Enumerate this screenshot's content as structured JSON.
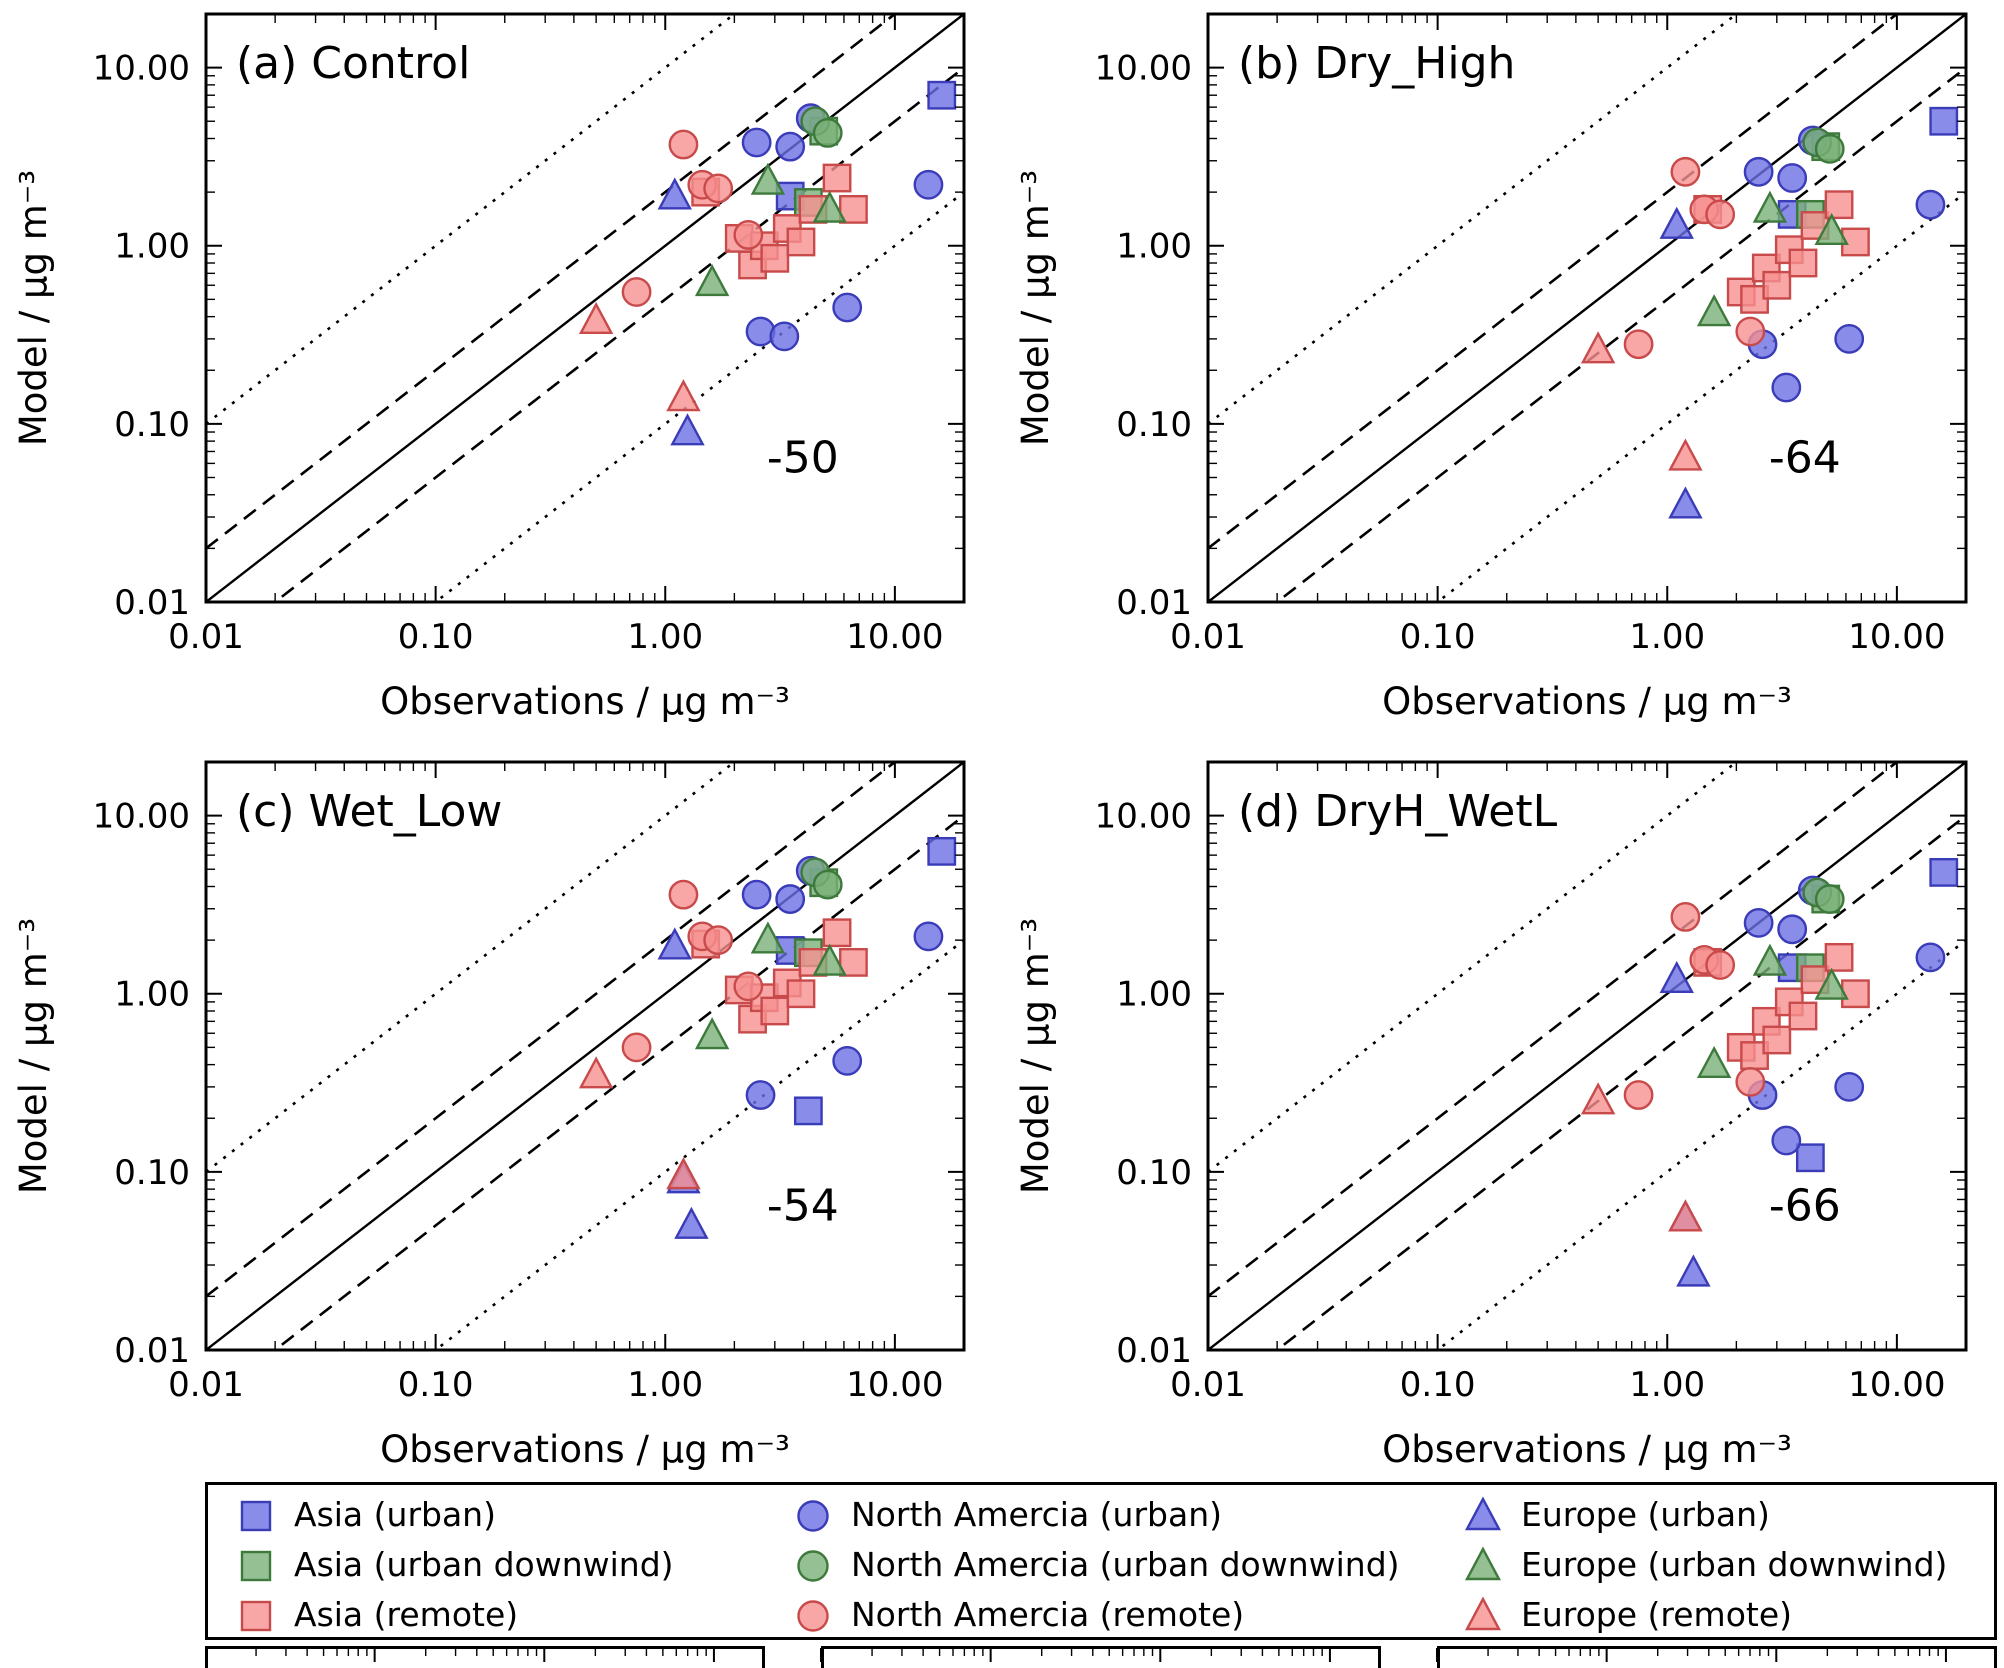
{
  "figure": {
    "xlabel": "Observations / µg m⁻³",
    "ylabel": "Model / µg m⁻³",
    "tick_labels": [
      "0.01",
      "0.10",
      "1.00",
      "10.00"
    ],
    "tick_values": [
      0.01,
      0.1,
      1,
      10
    ]
  },
  "colors": {
    "urban": {
      "fill": "#6b6fe2",
      "stroke": "#3a3cb8"
    },
    "urban_downwind": {
      "fill": "#7bb078",
      "stroke": "#3e7a3c"
    },
    "remote": {
      "fill": "#f69090",
      "stroke": "#c94a4a"
    }
  },
  "chart_data": {
    "type": "scatter",
    "scale": "log-log",
    "xlim": [
      0.01,
      20
    ],
    "ylim": [
      0.01,
      20
    ],
    "reference_lines": [
      {
        "ratio": 1,
        "style": "solid"
      },
      {
        "ratio": 2,
        "style": "dashed"
      },
      {
        "ratio": 0.5,
        "style": "dashed"
      },
      {
        "ratio": 10,
        "style": "dotted"
      },
      {
        "ratio": 0.1,
        "style": "dotted"
      }
    ],
    "panels": [
      {
        "id": "a",
        "title": "(a) Control",
        "bias": "-50",
        "series": [
          {
            "name": "Asia (urban)",
            "marker": "square",
            "class": "urban",
            "points": [
              [
                16,
                7.0
              ],
              [
                3.5,
                1.9
              ]
            ]
          },
          {
            "name": "Asia (urban downwind)",
            "marker": "square",
            "class": "urban_downwind",
            "points": [
              [
                4.9,
                4.4
              ],
              [
                4.2,
                1.75
              ]
            ]
          },
          {
            "name": "Asia (remote)",
            "marker": "square",
            "class": "remote",
            "points": [
              [
                1.5,
                2.0
              ],
              [
                2.1,
                1.1
              ],
              [
                2.4,
                0.78
              ],
              [
                2.7,
                1.0
              ],
              [
                3.0,
                0.85
              ],
              [
                3.4,
                1.25
              ],
              [
                3.9,
                1.05
              ],
              [
                4.4,
                1.6
              ],
              [
                5.6,
                2.4
              ],
              [
                6.6,
                1.6
              ]
            ]
          },
          {
            "name": "North Amercia (urban)",
            "marker": "circle",
            "class": "urban",
            "points": [
              [
                2.5,
                3.8
              ],
              [
                3.5,
                3.6
              ],
              [
                4.3,
                5.2
              ],
              [
                14,
                2.2
              ],
              [
                6.2,
                0.45
              ],
              [
                2.6,
                0.33
              ],
              [
                3.3,
                0.31
              ]
            ]
          },
          {
            "name": "North Amercia (urban downwind)",
            "marker": "circle",
            "class": "urban_downwind",
            "points": [
              [
                4.5,
                5.0
              ],
              [
                5.1,
                4.3
              ]
            ]
          },
          {
            "name": "North Amercia (remote)",
            "marker": "circle",
            "class": "remote",
            "points": [
              [
                1.2,
                3.7
              ],
              [
                1.45,
                2.2
              ],
              [
                1.7,
                2.1
              ],
              [
                2.3,
                1.15
              ],
              [
                0.75,
                0.55
              ]
            ]
          },
          {
            "name": "Europe (urban)",
            "marker": "triangle",
            "class": "urban",
            "points": [
              [
                1.1,
                1.9
              ],
              [
                1.25,
                0.09
              ]
            ]
          },
          {
            "name": "Europe (urban downwind)",
            "marker": "triangle",
            "class": "urban_downwind",
            "points": [
              [
                2.8,
                2.3
              ],
              [
                1.6,
                0.62
              ],
              [
                5.2,
                1.6
              ]
            ]
          },
          {
            "name": "Europe (remote)",
            "marker": "triangle",
            "class": "remote",
            "points": [
              [
                0.5,
                0.38
              ],
              [
                1.2,
                0.14
              ]
            ]
          }
        ]
      },
      {
        "id": "b",
        "title": "(b) Dry_High",
        "bias": "-64",
        "series": [
          {
            "name": "Asia (urban)",
            "marker": "square",
            "class": "urban",
            "points": [
              [
                16,
                5.0
              ],
              [
                3.5,
                1.5
              ]
            ]
          },
          {
            "name": "Asia (urban downwind)",
            "marker": "square",
            "class": "urban_downwind",
            "points": [
              [
                4.9,
                3.6
              ],
              [
                4.2,
                1.5
              ]
            ]
          },
          {
            "name": "Asia (remote)",
            "marker": "square",
            "class": "remote",
            "points": [
              [
                1.5,
                1.6
              ],
              [
                2.1,
                0.55
              ],
              [
                2.4,
                0.5
              ],
              [
                2.7,
                0.75
              ],
              [
                3.0,
                0.6
              ],
              [
                3.4,
                0.95
              ],
              [
                3.9,
                0.8
              ],
              [
                4.4,
                1.3
              ],
              [
                5.6,
                1.7
              ],
              [
                6.6,
                1.05
              ]
            ]
          },
          {
            "name": "North Amercia (urban)",
            "marker": "circle",
            "class": "urban",
            "points": [
              [
                2.5,
                2.6
              ],
              [
                3.5,
                2.4
              ],
              [
                4.3,
                3.9
              ],
              [
                14,
                1.7
              ],
              [
                6.2,
                0.3
              ],
              [
                2.6,
                0.28
              ],
              [
                3.3,
                0.16
              ]
            ]
          },
          {
            "name": "North Amercia (urban downwind)",
            "marker": "circle",
            "class": "urban_downwind",
            "points": [
              [
                4.5,
                3.8
              ],
              [
                5.1,
                3.5
              ]
            ]
          },
          {
            "name": "North Amercia (remote)",
            "marker": "circle",
            "class": "remote",
            "points": [
              [
                1.2,
                2.6
              ],
              [
                1.45,
                1.6
              ],
              [
                1.7,
                1.5
              ],
              [
                2.3,
                0.33
              ],
              [
                0.75,
                0.28
              ]
            ]
          },
          {
            "name": "Europe (urban)",
            "marker": "triangle",
            "class": "urban",
            "points": [
              [
                1.1,
                1.3
              ],
              [
                1.2,
                0.035
              ]
            ]
          },
          {
            "name": "Europe (urban downwind)",
            "marker": "triangle",
            "class": "urban_downwind",
            "points": [
              [
                2.8,
                1.6
              ],
              [
                1.6,
                0.42
              ],
              [
                5.2,
                1.2
              ]
            ]
          },
          {
            "name": "Europe (remote)",
            "marker": "triangle",
            "class": "remote",
            "points": [
              [
                0.5,
                0.26
              ],
              [
                1.2,
                0.065
              ]
            ]
          }
        ]
      },
      {
        "id": "c",
        "title": "(c) Wet_Low",
        "bias": "-54",
        "series": [
          {
            "name": "Asia (urban)",
            "marker": "square",
            "class": "urban",
            "points": [
              [
                16,
                6.3
              ],
              [
                3.5,
                1.75
              ],
              [
                4.2,
                0.22
              ]
            ]
          },
          {
            "name": "Asia (urban downwind)",
            "marker": "square",
            "class": "urban_downwind",
            "points": [
              [
                4.9,
                4.2
              ],
              [
                4.2,
                1.7
              ]
            ]
          },
          {
            "name": "Asia (remote)",
            "marker": "square",
            "class": "remote",
            "points": [
              [
                1.5,
                1.9
              ],
              [
                2.1,
                1.05
              ],
              [
                2.4,
                0.72
              ],
              [
                2.7,
                0.95
              ],
              [
                3.0,
                0.8
              ],
              [
                3.4,
                1.15
              ],
              [
                3.9,
                1.0
              ],
              [
                4.4,
                1.5
              ],
              [
                5.6,
                2.2
              ],
              [
                6.6,
                1.5
              ]
            ]
          },
          {
            "name": "North Amercia (urban)",
            "marker": "circle",
            "class": "urban",
            "points": [
              [
                2.5,
                3.6
              ],
              [
                3.5,
                3.4
              ],
              [
                4.3,
                4.9
              ],
              [
                14,
                2.1
              ],
              [
                6.2,
                0.42
              ],
              [
                2.6,
                0.27
              ]
            ]
          },
          {
            "name": "North Amercia (urban downwind)",
            "marker": "circle",
            "class": "urban_downwind",
            "points": [
              [
                4.5,
                4.8
              ],
              [
                5.1,
                4.1
              ]
            ]
          },
          {
            "name": "North Amercia (remote)",
            "marker": "circle",
            "class": "remote",
            "points": [
              [
                1.2,
                3.6
              ],
              [
                1.45,
                2.1
              ],
              [
                1.7,
                2.0
              ],
              [
                2.3,
                1.1
              ],
              [
                0.75,
                0.5
              ]
            ]
          },
          {
            "name": "Europe (urban)",
            "marker": "triangle",
            "class": "urban",
            "points": [
              [
                1.1,
                1.85
              ],
              [
                1.2,
                0.09
              ],
              [
                1.3,
                0.05
              ]
            ]
          },
          {
            "name": "Europe (urban downwind)",
            "marker": "triangle",
            "class": "urban_downwind",
            "points": [
              [
                2.8,
                2.0
              ],
              [
                1.6,
                0.58
              ],
              [
                5.2,
                1.5
              ]
            ]
          },
          {
            "name": "Europe (remote)",
            "marker": "triangle",
            "class": "remote",
            "points": [
              [
                0.5,
                0.35
              ],
              [
                1.2,
                0.095
              ]
            ]
          }
        ]
      },
      {
        "id": "d",
        "title": "(d) DryH_WetL",
        "bias": "-66",
        "series": [
          {
            "name": "Asia (urban)",
            "marker": "square",
            "class": "urban",
            "points": [
              [
                16,
                4.8
              ],
              [
                3.5,
                1.4
              ],
              [
                4.2,
                0.12
              ]
            ]
          },
          {
            "name": "Asia (urban downwind)",
            "marker": "square",
            "class": "urban_downwind",
            "points": [
              [
                4.9,
                3.4
              ],
              [
                4.2,
                1.4
              ]
            ]
          },
          {
            "name": "Asia (remote)",
            "marker": "square",
            "class": "remote",
            "points": [
              [
                1.5,
                1.5
              ],
              [
                2.1,
                0.5
              ],
              [
                2.4,
                0.45
              ],
              [
                2.7,
                0.7
              ],
              [
                3.0,
                0.55
              ],
              [
                3.4,
                0.9
              ],
              [
                3.9,
                0.75
              ],
              [
                4.4,
                1.2
              ],
              [
                5.6,
                1.6
              ],
              [
                6.6,
                1.0
              ]
            ]
          },
          {
            "name": "North Amercia (urban)",
            "marker": "circle",
            "class": "urban",
            "points": [
              [
                2.5,
                2.5
              ],
              [
                3.5,
                2.3
              ],
              [
                4.3,
                3.8
              ],
              [
                14,
                1.6
              ],
              [
                6.2,
                0.3
              ],
              [
                2.6,
                0.27
              ],
              [
                3.3,
                0.15
              ]
            ]
          },
          {
            "name": "North Amercia (urban downwind)",
            "marker": "circle",
            "class": "urban_downwind",
            "points": [
              [
                4.5,
                3.7
              ],
              [
                5.1,
                3.4
              ]
            ]
          },
          {
            "name": "North Amercia (remote)",
            "marker": "circle",
            "class": "remote",
            "points": [
              [
                1.2,
                2.7
              ],
              [
                1.45,
                1.55
              ],
              [
                1.7,
                1.45
              ],
              [
                2.3,
                0.32
              ],
              [
                0.75,
                0.27
              ]
            ]
          },
          {
            "name": "Europe (urban)",
            "marker": "triangle",
            "class": "urban",
            "points": [
              [
                1.1,
                1.2
              ],
              [
                1.2,
                0.055
              ],
              [
                1.3,
                0.027
              ]
            ]
          },
          {
            "name": "Europe (urban downwind)",
            "marker": "triangle",
            "class": "urban_downwind",
            "points": [
              [
                2.8,
                1.5
              ],
              [
                1.6,
                0.4
              ],
              [
                5.2,
                1.1
              ]
            ]
          },
          {
            "name": "Europe (remote)",
            "marker": "triangle",
            "class": "remote",
            "points": [
              [
                0.5,
                0.25
              ],
              [
                1.2,
                0.055
              ]
            ]
          }
        ]
      }
    ]
  },
  "legend": {
    "columns": [
      {
        "marker": "square",
        "entries": [
          {
            "label": "Asia (urban)",
            "class": "urban"
          },
          {
            "label": "Asia (urban downwind)",
            "class": "urban_downwind"
          },
          {
            "label": "Asia (remote)",
            "class": "remote"
          }
        ]
      },
      {
        "marker": "circle",
        "entries": [
          {
            "label": "North Amercia (urban)",
            "class": "urban"
          },
          {
            "label": "North Amercia (urban downwind)",
            "class": "urban_downwind"
          },
          {
            "label": "North Amercia (remote)",
            "class": "remote"
          }
        ]
      },
      {
        "marker": "triangle",
        "entries": [
          {
            "label": "Europe (urban)",
            "class": "urban"
          },
          {
            "label": "Europe (urban downwind)",
            "class": "urban_downwind"
          },
          {
            "label": "Europe (remote)",
            "class": "remote"
          }
        ]
      }
    ]
  }
}
